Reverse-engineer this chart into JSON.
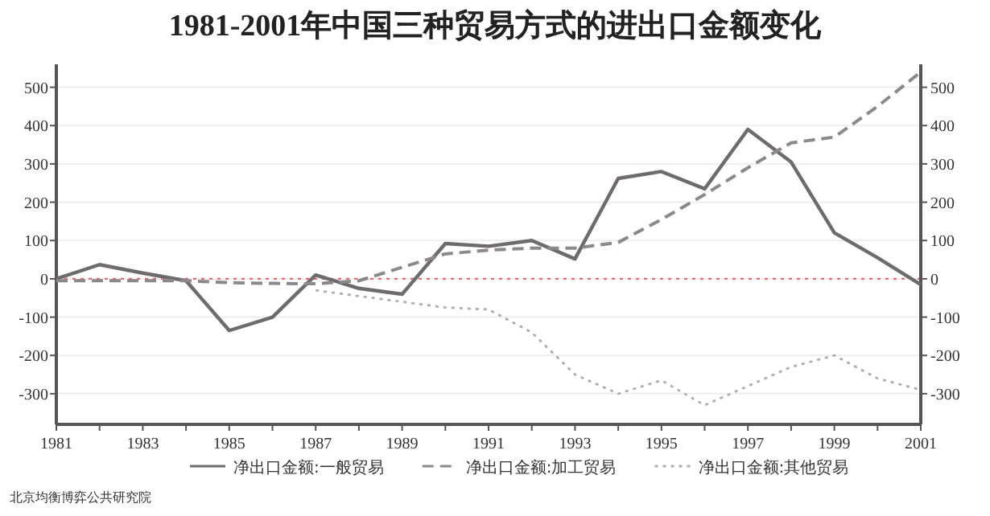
{
  "chart_data": {
    "type": "line",
    "title": "1981-2001年中国三种贸易方式的进出口金额变化",
    "x": [
      1981,
      1982,
      1983,
      1984,
      1985,
      1986,
      1987,
      1988,
      1989,
      1990,
      1991,
      1992,
      1993,
      1994,
      1995,
      1996,
      1997,
      1998,
      1999,
      2000,
      2001
    ],
    "series": [
      {
        "name": "净出口金额:一般贸易",
        "color": "#6e6a6e",
        "line_style": "solid",
        "values": [
          0,
          37,
          15,
          -5,
          -135,
          -100,
          10,
          -25,
          -40,
          92,
          85,
          100,
          52,
          262,
          280,
          235,
          390,
          305,
          120,
          55,
          -15
        ]
      },
      {
        "name": "净出口金额:加工贸易",
        "color": "#8c888c",
        "line_style": "dashed",
        "values": [
          -5,
          -5,
          -5,
          -5,
          -10,
          -12,
          -13,
          -5,
          30,
          65,
          75,
          80,
          80,
          95,
          155,
          220,
          290,
          355,
          370,
          450,
          540
        ]
      },
      {
        "name": "净出口金额:其他贸易",
        "color": "#b0acb0",
        "line_style": "dotted",
        "values": [
          null,
          null,
          null,
          null,
          null,
          null,
          -30,
          -45,
          -60,
          -75,
          -80,
          -140,
          -250,
          -300,
          -265,
          -330,
          -280,
          -230,
          -200,
          -260,
          -290
        ]
      }
    ],
    "xlim": [
      1981,
      2001
    ],
    "xticks": [
      1981,
      {
        "value": 1982,
        "label": null
      },
      1983,
      {
        "value": 1984,
        "label": null
      },
      1985,
      {
        "value": 1986,
        "label": null
      },
      1987,
      {
        "value": 1988,
        "label": null
      },
      1989,
      {
        "value": 1990,
        "label": null
      },
      1991,
      {
        "value": 1992,
        "label": null
      },
      1993,
      {
        "value": 1994,
        "label": null
      },
      1995,
      {
        "value": 1996,
        "label": null
      },
      1997,
      {
        "value": 1998,
        "label": null
      },
      1999,
      {
        "value": 2000,
        "label": null
      },
      2001
    ],
    "ylim": [
      -380,
      560
    ],
    "yticks": [
      -300,
      -200,
      -100,
      0,
      100,
      200,
      300,
      400,
      500
    ],
    "y2lim": [
      -380,
      560
    ],
    "y2ticks": [
      -300,
      -200,
      -100,
      0,
      100,
      200,
      300,
      400,
      500
    ],
    "grid": "y",
    "ref_lines": [
      {
        "axis": "y",
        "value": 0,
        "color": "#e07070",
        "line_style": "dotted"
      }
    ],
    "legend": "bottom",
    "annotations": [
      "北京均衡博弈公共研究院"
    ]
  }
}
